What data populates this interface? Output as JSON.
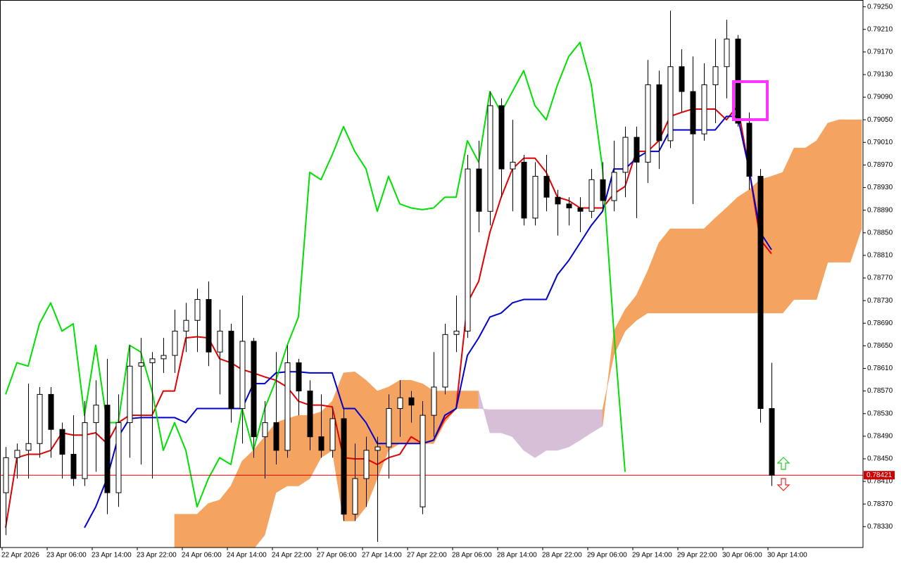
{
  "chart_data": {
    "type": "candlestick",
    "categories": [
      "22 Apr 2026",
      null,
      null,
      null,
      "23 Apr 06:00",
      null,
      null,
      null,
      "23 Apr 14:00",
      null,
      null,
      null,
      "23 Apr 22:00",
      null,
      null,
      null,
      "24 Apr 06:00",
      null,
      null,
      null,
      "24 Apr 14:00",
      null,
      null,
      null,
      "24 Apr 22:00",
      null,
      null,
      null,
      "27 Apr 06:00",
      null,
      null,
      null,
      "27 Apr 14:00",
      null,
      null,
      null,
      "27 Apr 22:00",
      null,
      null,
      null,
      "28 Apr 06:00",
      null,
      null,
      null,
      "28 Apr 14:00",
      null,
      null,
      null,
      "28 Apr 22:00",
      null,
      null,
      null,
      "29 Apr 06:00",
      null,
      null,
      null,
      "29 Apr 14:00",
      null,
      null,
      null,
      "29 Apr 22:00",
      null,
      null,
      null,
      "30 Apr 06:00",
      null,
      null,
      null,
      "30 Apr 14:00",
      null,
      null,
      null,
      null,
      null,
      null,
      null,
      null
    ],
    "candles": {
      "open": [
        0.7839,
        0.78452,
        0.78465,
        0.78477,
        0.78564,
        0.78502,
        0.78458,
        0.78415,
        0.78514,
        0.78545,
        0.7839,
        0.78514,
        0.78614,
        0.7862,
        0.78627,
        0.78633,
        0.78676,
        0.78695,
        0.78732,
        0.78639,
        0.78676,
        0.78539,
        0.78658,
        0.78489,
        0.78514,
        0.78465,
        0.7862,
        0.7857,
        0.78489,
        0.78465,
        0.78521,
        0.78352,
        0.78415,
        0.78465,
        0.78471,
        0.78539,
        0.78558,
        0.78365,
        0.78527,
        0.78577,
        0.7867,
        0.78676,
        0.78963,
        0.78888,
        0.79075,
        0.78963,
        0.78975,
        0.78876,
        0.7895,
        0.78913,
        0.78901,
        0.78894,
        0.78888,
        0.78944,
        0.78907,
        0.78957,
        0.79019,
        0.78975,
        0.79112,
        0.79013,
        0.79144,
        0.791,
        0.79025,
        0.79112,
        0.79144,
        0.79193,
        0.79044,
        0.7895,
        0.78539,
        null,
        null,
        null,
        null,
        null,
        null,
        null,
        null
      ],
      "high": [
        0.78471,
        0.78477,
        0.78583,
        0.78577,
        0.78577,
        0.78514,
        0.78527,
        0.78552,
        0.78589,
        0.78627,
        0.78564,
        0.78651,
        0.78664,
        0.78639,
        0.78664,
        0.78714,
        0.78726,
        0.78751,
        0.78764,
        0.78714,
        0.78689,
        0.78739,
        0.78664,
        0.78552,
        0.78639,
        0.78651,
        0.78627,
        0.78589,
        0.78564,
        0.78539,
        0.78539,
        0.78477,
        0.78489,
        0.78489,
        0.78564,
        0.78589,
        0.7857,
        0.78552,
        0.78639,
        0.78689,
        0.78739,
        0.78988,
        0.79013,
        0.791,
        0.79088,
        0.7905,
        0.78988,
        0.78975,
        0.78988,
        0.78926,
        0.78913,
        0.78913,
        0.78963,
        0.78975,
        0.79013,
        0.79038,
        0.79038,
        0.79156,
        0.79137,
        0.79243,
        0.79175,
        0.79162,
        0.7915,
        0.79193,
        0.79227,
        0.792,
        0.79063,
        0.78963,
        0.7862,
        null,
        null,
        null,
        null,
        null,
        null,
        null,
        null
      ],
      "low": [
        0.78315,
        0.78415,
        0.78415,
        0.78452,
        0.78452,
        0.78415,
        0.78402,
        0.78402,
        0.78427,
        0.78352,
        0.78365,
        0.78452,
        0.7844,
        0.78415,
        0.78602,
        0.78602,
        0.78639,
        0.78639,
        0.78614,
        0.78564,
        0.78514,
        0.78477,
        0.78452,
        0.78415,
        0.7844,
        0.78452,
        0.78527,
        0.78465,
        0.78452,
        0.78452,
        0.7834,
        0.7834,
        0.78365,
        0.78303,
        0.78415,
        0.78489,
        0.78514,
        0.78352,
        0.78489,
        0.78564,
        0.78639,
        0.78664,
        0.78851,
        0.78863,
        0.78913,
        0.78888,
        0.78863,
        0.78863,
        0.78888,
        0.78845,
        0.78863,
        0.78851,
        0.78876,
        0.78888,
        0.78888,
        0.78913,
        0.78876,
        0.78938,
        0.78963,
        0.79,
        0.79063,
        0.78901,
        0.79013,
        0.79044,
        0.79088,
        0.79038,
        0.78926,
        0.78514,
        0.78402,
        null,
        null,
        null,
        null,
        null,
        null,
        null,
        null
      ],
      "close": [
        0.78452,
        0.78465,
        0.78477,
        0.78564,
        0.78502,
        0.78458,
        0.78415,
        0.78514,
        0.78545,
        0.7839,
        0.78514,
        0.78614,
        0.7862,
        0.78627,
        0.78633,
        0.78676,
        0.78695,
        0.78732,
        0.78639,
        0.78676,
        0.78539,
        0.78658,
        0.78489,
        0.78514,
        0.78465,
        0.7862,
        0.7857,
        0.78489,
        0.78465,
        0.78521,
        0.78352,
        0.78415,
        0.78465,
        0.78471,
        0.78539,
        0.78558,
        0.78545,
        0.78527,
        0.78577,
        0.7867,
        0.78676,
        0.78963,
        0.78888,
        0.79075,
        0.78963,
        0.78975,
        0.78876,
        0.7895,
        0.78913,
        0.78901,
        0.78894,
        0.78888,
        0.78944,
        0.78907,
        0.78957,
        0.79019,
        0.78975,
        0.79112,
        0.79013,
        0.79144,
        0.791,
        0.79025,
        0.79112,
        0.79144,
        0.79193,
        0.79044,
        0.7895,
        0.78539,
        0.78421,
        null,
        null,
        null,
        null,
        null,
        null,
        null,
        null
      ],
      "up_color": "#ffffff",
      "down_color": "#000000",
      "edge_color": "#000000"
    },
    "cloud": {
      "span_a": [
        null,
        null,
        null,
        null,
        null,
        null,
        null,
        null,
        null,
        null,
        null,
        null,
        null,
        null,
        null,
        0.78352,
        0.78352,
        0.78352,
        0.78371,
        0.78377,
        0.78402,
        0.78446,
        0.78465,
        0.78489,
        0.78514,
        0.78521,
        0.78527,
        0.78527,
        0.78533,
        0.78552,
        0.78602,
        0.78604,
        0.78589,
        0.7857,
        0.78577,
        0.78589,
        0.78589,
        0.78583,
        0.7857,
        0.7857,
        0.7857,
        0.7857,
        0.7857,
        0.78496,
        0.78496,
        0.78489,
        0.78465,
        0.78452,
        0.78465,
        0.78465,
        0.78471,
        0.78483,
        0.78496,
        0.78508,
        0.78676,
        0.78714,
        0.78739,
        0.78782,
        0.78832,
        0.78857,
        0.78857,
        0.78857,
        0.78857,
        0.78876,
        0.78894,
        0.78913,
        0.78926,
        0.78944,
        0.7895,
        0.78957,
        0.79,
        0.79,
        0.79013,
        0.79044,
        0.7905,
        0.7905,
        0.7905
      ],
      "span_b": [
        null,
        null,
        null,
        null,
        null,
        null,
        null,
        null,
        null,
        null,
        null,
        null,
        null,
        null,
        null,
        0.7829,
        0.7829,
        0.7829,
        0.7829,
        0.7829,
        0.7829,
        0.7829,
        0.7829,
        0.78315,
        0.7839,
        0.78402,
        0.78402,
        0.78415,
        0.78452,
        0.78465,
        0.7834,
        0.7834,
        0.78365,
        0.78415,
        0.78465,
        0.78477,
        0.78477,
        0.78477,
        0.78477,
        0.78514,
        0.78539,
        0.78539,
        0.78539,
        0.78537,
        0.78537,
        0.78537,
        0.78537,
        0.78537,
        0.78537,
        0.78537,
        0.78537,
        0.78537,
        0.78537,
        0.78537,
        0.78633,
        0.78676,
        0.78695,
        0.78708,
        0.78708,
        0.78708,
        0.78708,
        0.78708,
        0.78708,
        0.78708,
        0.78708,
        0.78708,
        0.78708,
        0.78708,
        0.78708,
        0.78708,
        0.78732,
        0.78732,
        0.78732,
        0.78798,
        0.78798,
        0.78798,
        0.78857
      ],
      "up_color": "#f4a460",
      "down_color": "#d8bfd8"
    },
    "lines": [
      {
        "color": "#e00000",
        "values": [
          0.78328,
          0.78452,
          0.78458,
          0.78458,
          0.78465,
          0.78496,
          0.78492,
          0.78492,
          0.78496,
          0.78477,
          0.78514,
          0.78527,
          0.78527,
          0.78527,
          0.7857,
          0.7857,
          0.78664,
          0.78666,
          0.78664,
          0.78627,
          0.7862,
          0.78608,
          0.78602,
          0.78595,
          0.78589,
          0.78577,
          0.78552,
          0.78545,
          0.78545,
          0.78542,
          0.78452,
          0.7845,
          0.7845,
          0.7844,
          0.78452,
          0.78458,
          0.78489,
          0.78477,
          0.78483,
          0.78521,
          0.78539,
          0.78726,
          0.78764,
          0.78851,
          0.78913,
          0.78963,
          0.78982,
          0.78982,
          0.78957,
          0.78913,
          0.78907,
          0.78894,
          0.78894,
          0.78894,
          0.78919,
          0.78932,
          0.78994,
          0.78994,
          0.79013,
          0.79056,
          0.79063,
          0.79069,
          0.79069,
          0.79069,
          0.7905,
          0.79075,
          0.78963,
          0.78838,
          0.78813,
          null,
          null,
          null,
          null,
          null,
          null,
          null,
          null
        ]
      },
      {
        "color": "#0000cc",
        "values": [
          null,
          null,
          null,
          null,
          null,
          null,
          null,
          0.78328,
          0.78365,
          0.78415,
          0.78489,
          0.78521,
          0.78523,
          0.78523,
          0.78523,
          0.78523,
          0.78514,
          0.78539,
          0.78539,
          0.78539,
          0.78539,
          0.78539,
          0.78583,
          0.78583,
          0.78602,
          0.78604,
          0.78604,
          0.78602,
          0.78602,
          0.78602,
          0.78539,
          0.78539,
          0.78514,
          0.78477,
          0.78477,
          0.78477,
          0.78477,
          0.78477,
          0.78483,
          0.78527,
          0.78539,
          0.78633,
          0.78664,
          0.78701,
          0.78708,
          0.78726,
          0.78732,
          0.78732,
          0.78732,
          0.78776,
          0.78801,
          0.78832,
          0.78863,
          0.78888,
          0.78963,
          0.78963,
          0.78982,
          0.78994,
          0.78994,
          0.79032,
          0.79032,
          0.79032,
          0.79032,
          0.79032,
          0.79056,
          0.79056,
          0.78963,
          0.78851,
          0.7882,
          null,
          null,
          null,
          null,
          null,
          null,
          null,
          null
        ]
      },
      {
        "color": "#00e000",
        "values": [
          0.78564,
          0.7862,
          0.78614,
          0.78689,
          0.78726,
          0.78676,
          0.78689,
          0.78527,
          0.78651,
          0.78514,
          0.78514,
          0.78651,
          0.78639,
          0.7857,
          0.78465,
          0.78514,
          0.78465,
          0.78365,
          0.78415,
          0.78452,
          0.7844,
          0.78539,
          0.78465,
          0.78539,
          0.78589,
          0.78651,
          0.78701,
          0.78957,
          0.78944,
          0.78988,
          0.79038,
          0.78994,
          0.78963,
          0.78888,
          0.7895,
          0.78901,
          0.78894,
          0.78891,
          0.78894,
          0.78913,
          0.78913,
          0.79013,
          0.78975,
          0.791,
          0.79063,
          0.791,
          0.79137,
          0.79075,
          0.7905,
          0.79112,
          0.79162,
          0.79187,
          0.79112,
          0.78963,
          0.78676,
          0.78427,
          null,
          null,
          null,
          null,
          null,
          null,
          null,
          null,
          null,
          null,
          null,
          null,
          null,
          null,
          null,
          null,
          null,
          null,
          null,
          null,
          null
        ]
      }
    ],
    "current_price": 0.78421,
    "current_price_color": "#d00000",
    "ylim": [
      0.78293,
      0.79262
    ],
    "yticks": [
      {
        "value": 0.7925,
        "label": "0.79250"
      },
      {
        "value": 0.7921,
        "label": "0.79210"
      },
      {
        "value": 0.7917,
        "label": "0.79170"
      },
      {
        "value": 0.7913,
        "label": "0.79130"
      },
      {
        "value": 0.7909,
        "label": "0.79090"
      },
      {
        "value": 0.7905,
        "label": "0.79050"
      },
      {
        "value": 0.7901,
        "label": "0.79010"
      },
      {
        "value": 0.7897,
        "label": "0.78970"
      },
      {
        "value": 0.7893,
        "label": "0.78930"
      },
      {
        "value": 0.7889,
        "label": "0.78890"
      },
      {
        "value": 0.7885,
        "label": "0.78850"
      },
      {
        "value": 0.7881,
        "label": "0.78810"
      },
      {
        "value": 0.7877,
        "label": "0.78770"
      },
      {
        "value": 0.7873,
        "label": "0.78730"
      },
      {
        "value": 0.7869,
        "label": "0.78690"
      },
      {
        "value": 0.7865,
        "label": "0.78650"
      },
      {
        "value": 0.7861,
        "label": "0.78610"
      },
      {
        "value": 0.7857,
        "label": "0.78570"
      },
      {
        "value": 0.7853,
        "label": "0.78530"
      },
      {
        "value": 0.7849,
        "label": "0.78490"
      },
      {
        "value": 0.7845,
        "label": "0.78450"
      },
      {
        "value": 0.7841,
        "label": "0.78410"
      },
      {
        "value": 0.7837,
        "label": "0.78370"
      },
      {
        "value": 0.7833,
        "label": "0.78330"
      }
    ],
    "grid": false
  }
}
